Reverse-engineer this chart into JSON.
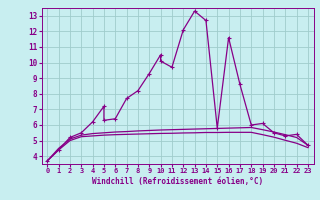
{
  "xlabel": "Windchill (Refroidissement éolien,°C)",
  "bg_color": "#c8eef0",
  "grid_color": "#a0cccc",
  "line_color": "#880088",
  "xlim": [
    -0.5,
    23.5
  ],
  "ylim": [
    3.5,
    13.5
  ],
  "xticks": [
    0,
    1,
    2,
    3,
    4,
    5,
    6,
    7,
    8,
    9,
    10,
    11,
    12,
    13,
    14,
    15,
    16,
    17,
    18,
    19,
    20,
    21,
    22,
    23
  ],
  "yticks": [
    4,
    5,
    6,
    7,
    8,
    9,
    10,
    11,
    12,
    13
  ],
  "series1_x": [
    0,
    1,
    2,
    3,
    4,
    5,
    5,
    6,
    7,
    8,
    9,
    10,
    10,
    11,
    12,
    13,
    14,
    15,
    16,
    17,
    18,
    19,
    20,
    21,
    22,
    23
  ],
  "series1_y": [
    3.7,
    4.4,
    5.2,
    5.5,
    6.2,
    7.2,
    6.3,
    6.4,
    7.7,
    8.2,
    9.3,
    10.5,
    10.1,
    9.7,
    12.1,
    13.3,
    12.7,
    5.8,
    11.6,
    8.6,
    6.0,
    6.1,
    5.5,
    5.3,
    5.4,
    4.7
  ],
  "series2_x": [
    0,
    1,
    2,
    3,
    4,
    5,
    6,
    7,
    8,
    9,
    10,
    11,
    12,
    13,
    14,
    15,
    16,
    17,
    18,
    19,
    20,
    21,
    22,
    23
  ],
  "series2_y": [
    3.7,
    4.5,
    5.1,
    5.35,
    5.45,
    5.5,
    5.55,
    5.58,
    5.62,
    5.65,
    5.68,
    5.7,
    5.72,
    5.74,
    5.76,
    5.78,
    5.8,
    5.82,
    5.84,
    5.7,
    5.55,
    5.38,
    5.2,
    4.7
  ],
  "series3_x": [
    0,
    1,
    2,
    3,
    4,
    5,
    6,
    7,
    8,
    9,
    10,
    11,
    12,
    13,
    14,
    15,
    16,
    17,
    18,
    19,
    20,
    21,
    22,
    23
  ],
  "series3_y": [
    3.7,
    4.4,
    5.0,
    5.25,
    5.3,
    5.35,
    5.38,
    5.4,
    5.42,
    5.44,
    5.46,
    5.47,
    5.49,
    5.5,
    5.52,
    5.52,
    5.53,
    5.53,
    5.53,
    5.38,
    5.22,
    5.02,
    4.83,
    4.55
  ]
}
